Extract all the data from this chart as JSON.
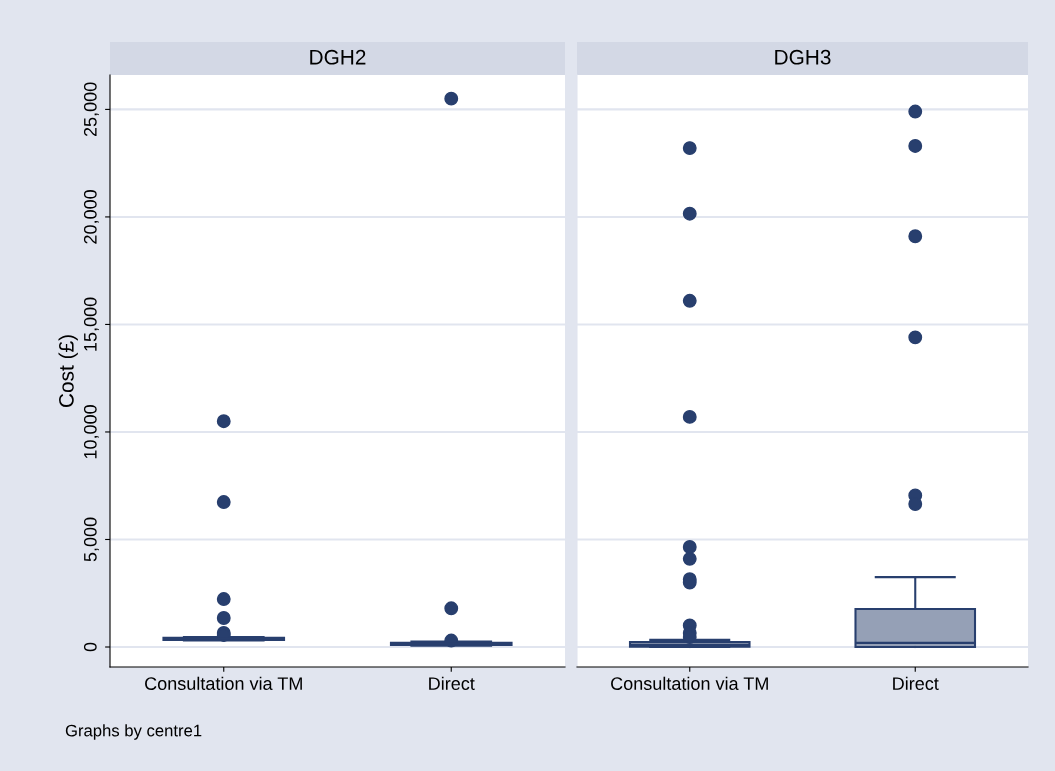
{
  "chart_data": [
    {
      "type": "box",
      "title": "DGH2",
      "ylabel": "Cost (£)",
      "categories": [
        "Consultation via TM",
        "Direct"
      ],
      "ylim": [
        -930,
        26600
      ],
      "yticks": [
        {
          "value": 0,
          "label": "0"
        },
        {
          "value": 5000,
          "label": "5,000"
        },
        {
          "value": 10000,
          "label": "10,000"
        },
        {
          "value": 15000,
          "label": "15,000"
        },
        {
          "value": 20000,
          "label": "20,000"
        },
        {
          "value": 25000,
          "label": "25,000"
        }
      ],
      "grid": "y",
      "annotations": [
        "Graphs by centre1"
      ],
      "series": [
        {
          "color": "#95a0b6",
          "boxes": [
            {
              "low": 300,
              "q1": 330,
              "median": 380,
              "q3": 430,
              "high": 460,
              "outliers": [
                10500,
                6740,
                2230,
                1350,
                650,
                560
              ]
            },
            {
              "low": 60,
              "q1": 100,
              "median": 150,
              "q3": 200,
              "high": 250,
              "outliers": [
                25500,
                1800,
                300
              ]
            }
          ]
        }
      ]
    },
    {
      "type": "box",
      "title": "DGH3",
      "categories": [
        "Consultation via TM",
        "Direct"
      ],
      "ylim": [
        -930,
        26600
      ],
      "yticks": [
        0,
        5000,
        10000,
        15000,
        20000,
        25000
      ],
      "grid": "y",
      "tick_labels": "x",
      "series": [
        {
          "color": "#95a0b6",
          "boxes": [
            {
              "low": 0,
              "q1": 10,
              "median": 100,
              "q3": 230,
              "high": 330,
              "outliers": [
                23200,
                20150,
                16100,
                10700,
                4650,
                4100,
                3150,
                3000,
                1000,
                650,
                460
              ]
            },
            {
              "low": 0,
              "q1": 0,
              "median": 190,
              "q3": 1770,
              "high": 3250,
              "outliers": [
                24900,
                23300,
                19100,
                14400,
                7050,
                6650
              ]
            }
          ]
        }
      ]
    }
  ]
}
